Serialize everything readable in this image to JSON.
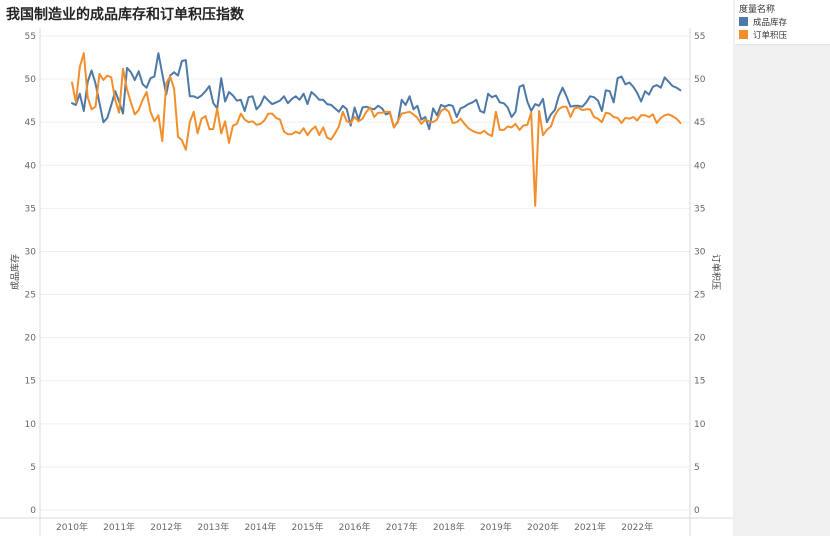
{
  "title": "我国制造业的成品库存和订单积压指数",
  "legend": {
    "title": "度量名称",
    "items": [
      {
        "label": "成品库存",
        "color": "#4e79a7"
      },
      {
        "label": "订单积压",
        "color": "#f28e2b"
      }
    ]
  },
  "chart_data": {
    "type": "line",
    "x_axis_labels": [
      "2010年",
      "2011年",
      "2012年",
      "2013年",
      "2014年",
      "2015年",
      "2016年",
      "2017年",
      "2018年",
      "2019年",
      "2020年",
      "2021年",
      "2022年"
    ],
    "ylabel_left": "成品库存",
    "ylabel_right": "订单积压",
    "ylim": [
      0,
      55
    ],
    "yticks": [
      0,
      5,
      10,
      15,
      20,
      25,
      30,
      35,
      40,
      45,
      50,
      55
    ],
    "grid": true,
    "legend_position": "right",
    "x_start": "2010-01",
    "x_end": "2022-12",
    "series": [
      {
        "name": "成品库存",
        "color": "#4e79a7",
        "values": [
          47.2,
          47.0,
          48.3,
          46.3,
          49.7,
          51.0,
          49.5,
          47.2,
          45.0,
          45.5,
          47.0,
          48.6,
          47.4,
          46.0,
          51.3,
          50.8,
          49.9,
          50.9,
          49.4,
          49.0,
          50.1,
          50.3,
          53.0,
          50.6,
          48.2,
          50.4,
          50.8,
          50.4,
          52.1,
          52.2,
          48.0,
          48.0,
          47.8,
          48.1,
          48.6,
          49.2,
          47.2,
          46.6,
          50.1,
          47.4,
          48.5,
          48.1,
          47.5,
          47.6,
          46.3,
          47.9,
          48.0,
          46.5,
          47.0,
          48.0,
          47.5,
          47.1,
          47.3,
          47.5,
          48.0,
          47.2,
          47.7,
          48.0,
          47.6,
          48.3,
          47.1,
          48.5,
          48.1,
          47.6,
          47.6,
          47.1,
          47.0,
          46.6,
          46.2,
          46.9,
          46.5,
          44.6,
          46.7,
          45.3,
          46.7,
          46.8,
          46.6,
          46.5,
          46.9,
          46.6,
          45.9,
          46.1,
          44.4,
          45.0,
          47.6,
          47.0,
          48.0,
          46.5,
          46.9,
          45.3,
          45.6,
          44.2,
          46.6,
          45.8,
          47.0,
          46.8,
          47.0,
          46.9,
          45.6,
          46.6,
          46.8,
          47.1,
          47.3,
          47.6,
          46.3,
          46.1,
          48.3,
          47.9,
          48.1,
          47.3,
          47.2,
          46.7,
          45.6,
          46.2,
          49.1,
          49.3,
          47.4,
          46.3,
          47.1,
          46.9,
          47.7,
          45.0,
          45.9,
          46.4,
          48.0,
          49.0,
          48.0,
          46.8,
          46.9,
          46.9,
          46.8,
          47.3,
          48.0,
          47.9,
          47.5,
          46.3,
          48.7,
          48.6,
          47.3,
          50.1,
          50.3,
          49.4,
          49.6,
          49.1,
          48.4,
          47.4,
          48.6,
          48.2,
          49.1,
          49.3,
          49.0,
          50.2,
          49.7,
          49.2,
          49.0,
          48.7
        ]
      },
      {
        "name": "订单积压",
        "color": "#f28e2b",
        "values": [
          49.6,
          47.3,
          51.4,
          53.0,
          47.9,
          46.5,
          46.8,
          50.6,
          49.9,
          50.4,
          50.2,
          47.6,
          46.1,
          51.2,
          48.8,
          47.3,
          45.9,
          46.4,
          47.6,
          48.5,
          46.2,
          45.1,
          45.8,
          42.8,
          49.5,
          50.3,
          48.9,
          43.3,
          42.9,
          41.8,
          45.0,
          46.2,
          43.7,
          45.4,
          45.7,
          44.2,
          44.2,
          46.6,
          43.7,
          45.1,
          42.6,
          44.6,
          44.8,
          46.0,
          45.3,
          45.0,
          45.1,
          44.7,
          44.8,
          45.2,
          46.0,
          46.0,
          45.5,
          45.3,
          43.9,
          43.6,
          43.6,
          43.9,
          43.7,
          44.3,
          43.5,
          44.1,
          44.5,
          43.5,
          44.4,
          43.2,
          43.0,
          43.7,
          44.5,
          46.2,
          45.1,
          44.9,
          45.6,
          45.1,
          45.4,
          46.2,
          46.7,
          45.6,
          46.1,
          46.1,
          46.2,
          46.2,
          44.4,
          45.1,
          46.0,
          46.1,
          46.2,
          45.9,
          45.5,
          44.8,
          45.3,
          45.1,
          45.0,
          45.3,
          46.3,
          46.6,
          46.2,
          44.9,
          45.0,
          45.4,
          44.8,
          44.3,
          44.0,
          43.8,
          43.7,
          44.0,
          43.6,
          43.4,
          46.2,
          44.1,
          44.1,
          44.5,
          44.4,
          44.8,
          44.1,
          44.6,
          44.7,
          46.1,
          35.3,
          46.3,
          43.5,
          44.1,
          44.5,
          45.8,
          46.5,
          46.8,
          46.8,
          45.6,
          46.6,
          46.7,
          46.4,
          46.5,
          46.5,
          45.6,
          45.4,
          45.0,
          46.1,
          46.0,
          45.6,
          45.5,
          44.9,
          45.5,
          45.4,
          45.6,
          45.2,
          45.8,
          45.8,
          45.6,
          45.9,
          44.9,
          45.5,
          45.8,
          45.9,
          45.7,
          45.4,
          44.9
        ]
      }
    ]
  }
}
